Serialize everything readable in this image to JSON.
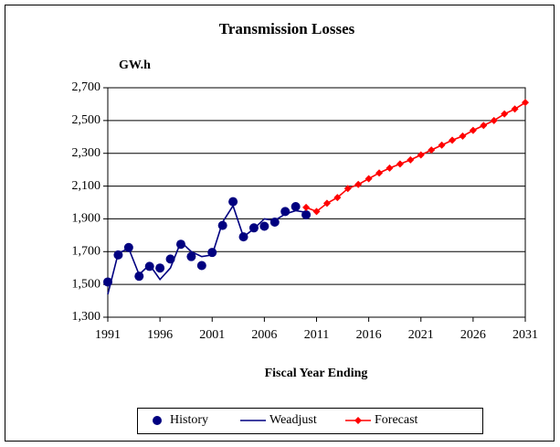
{
  "chart_data": {
    "type": "line",
    "title": "Transmission Losses",
    "ylabel": "GW.h",
    "xlabel": "Fiscal Year Ending",
    "x": [
      1991,
      1992,
      1993,
      1994,
      1995,
      1996,
      1997,
      1998,
      1999,
      2000,
      2001,
      2002,
      2003,
      2004,
      2005,
      2006,
      2007,
      2008,
      2009,
      2010,
      2011,
      2012,
      2013,
      2014,
      2015,
      2016,
      2017,
      2018,
      2019,
      2020,
      2021,
      2022,
      2023,
      2024,
      2025,
      2026,
      2027,
      2028,
      2029,
      2030,
      2031
    ],
    "series": [
      {
        "name": "History",
        "color": "#000080",
        "marker": "circle",
        "line": false,
        "values": [
          1515,
          1680,
          1725,
          1550,
          1610,
          1600,
          1655,
          1745,
          1670,
          1615,
          1695,
          1860,
          2005,
          1790,
          1845,
          1855,
          1880,
          1945,
          1975,
          1925,
          null,
          null,
          null,
          null,
          null,
          null,
          null,
          null,
          null,
          null,
          null,
          null,
          null,
          null,
          null,
          null,
          null,
          null,
          null,
          null,
          null
        ]
      },
      {
        "name": "Weadjust",
        "color": "#000080",
        "marker": "none",
        "line": true,
        "values": [
          1440,
          1690,
          1720,
          1560,
          1620,
          1530,
          1600,
          1760,
          1700,
          1670,
          1680,
          1880,
          1980,
          1790,
          1840,
          1900,
          1890,
          1930,
          1950,
          1940,
          null,
          null,
          null,
          null,
          null,
          null,
          null,
          null,
          null,
          null,
          null,
          null,
          null,
          null,
          null,
          null,
          null,
          null,
          null,
          null,
          null
        ]
      },
      {
        "name": "Forecast",
        "color": "#ff0000",
        "marker": "diamond",
        "line": true,
        "values": [
          null,
          null,
          null,
          null,
          null,
          null,
          null,
          null,
          null,
          null,
          null,
          null,
          null,
          null,
          null,
          null,
          null,
          null,
          null,
          1970,
          1945,
          1995,
          2030,
          2085,
          2110,
          2145,
          2180,
          2210,
          2235,
          2260,
          2290,
          2320,
          2350,
          2380,
          2405,
          2440,
          2470,
          2500,
          2540,
          2570,
          2610
        ]
      }
    ],
    "xlim": [
      1991,
      2031
    ],
    "xticks": [
      1991,
      1996,
      2001,
      2006,
      2011,
      2016,
      2021,
      2026,
      2031
    ],
    "ylim": [
      1300,
      2700
    ],
    "yticks": [
      {
        "value": 1300,
        "label": "1,300"
      },
      {
        "value": 1500,
        "label": "1,500"
      },
      {
        "value": 1700,
        "label": "1,700"
      },
      {
        "value": 1900,
        "label": "1,900"
      },
      {
        "value": 2100,
        "label": "2,100"
      },
      {
        "value": 2300,
        "label": "2,300"
      },
      {
        "value": 2500,
        "label": "2,500"
      },
      {
        "value": 2700,
        "label": "2,700"
      }
    ],
    "grid": true,
    "legend": "bottom"
  }
}
